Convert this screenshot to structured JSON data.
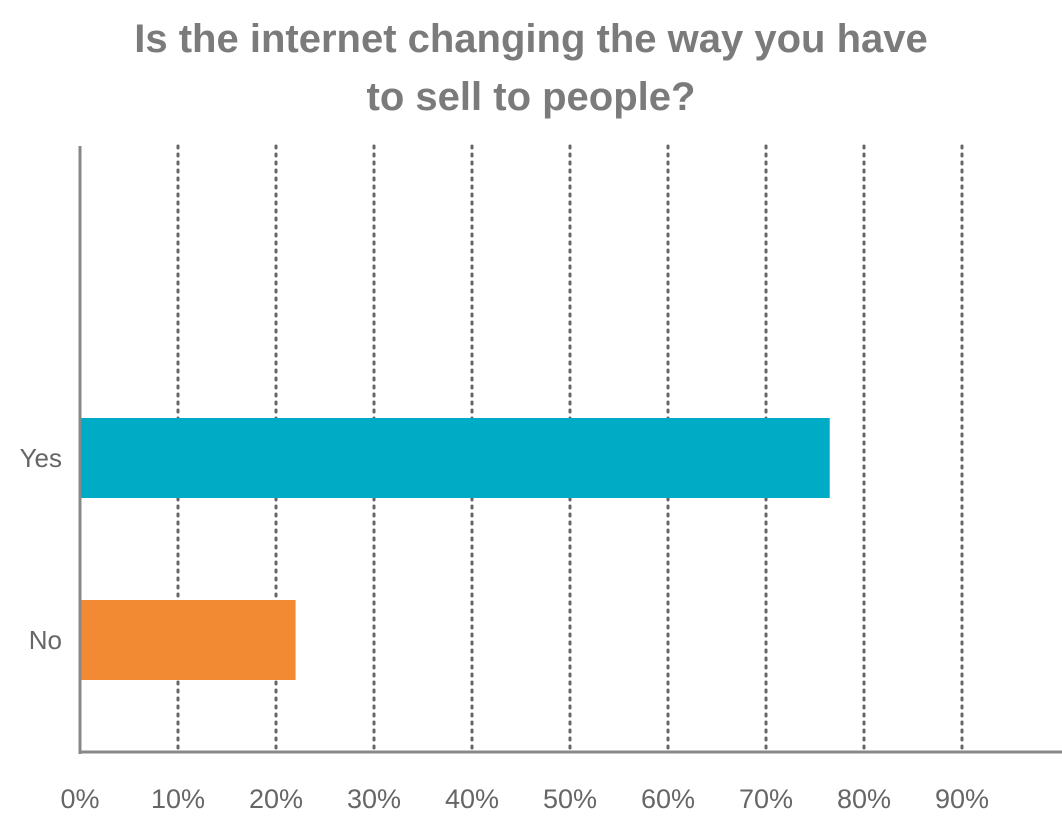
{
  "chart_data": {
    "type": "bar",
    "orientation": "horizontal",
    "title": [
      "Is the internet changing the way you have",
      "to sell to people?"
    ],
    "categories": [
      "Yes",
      "No"
    ],
    "values": [
      76.5,
      22
    ],
    "colors": [
      "#00abc6",
      "#f28a33"
    ],
    "xlim": [
      0,
      100
    ],
    "x_ticks": [
      "0%",
      "10%",
      "20%",
      "30%",
      "40%",
      "50%",
      "60%",
      "70%",
      "80%",
      "90%"
    ],
    "grid": "vertical dotted",
    "legend": "none"
  }
}
